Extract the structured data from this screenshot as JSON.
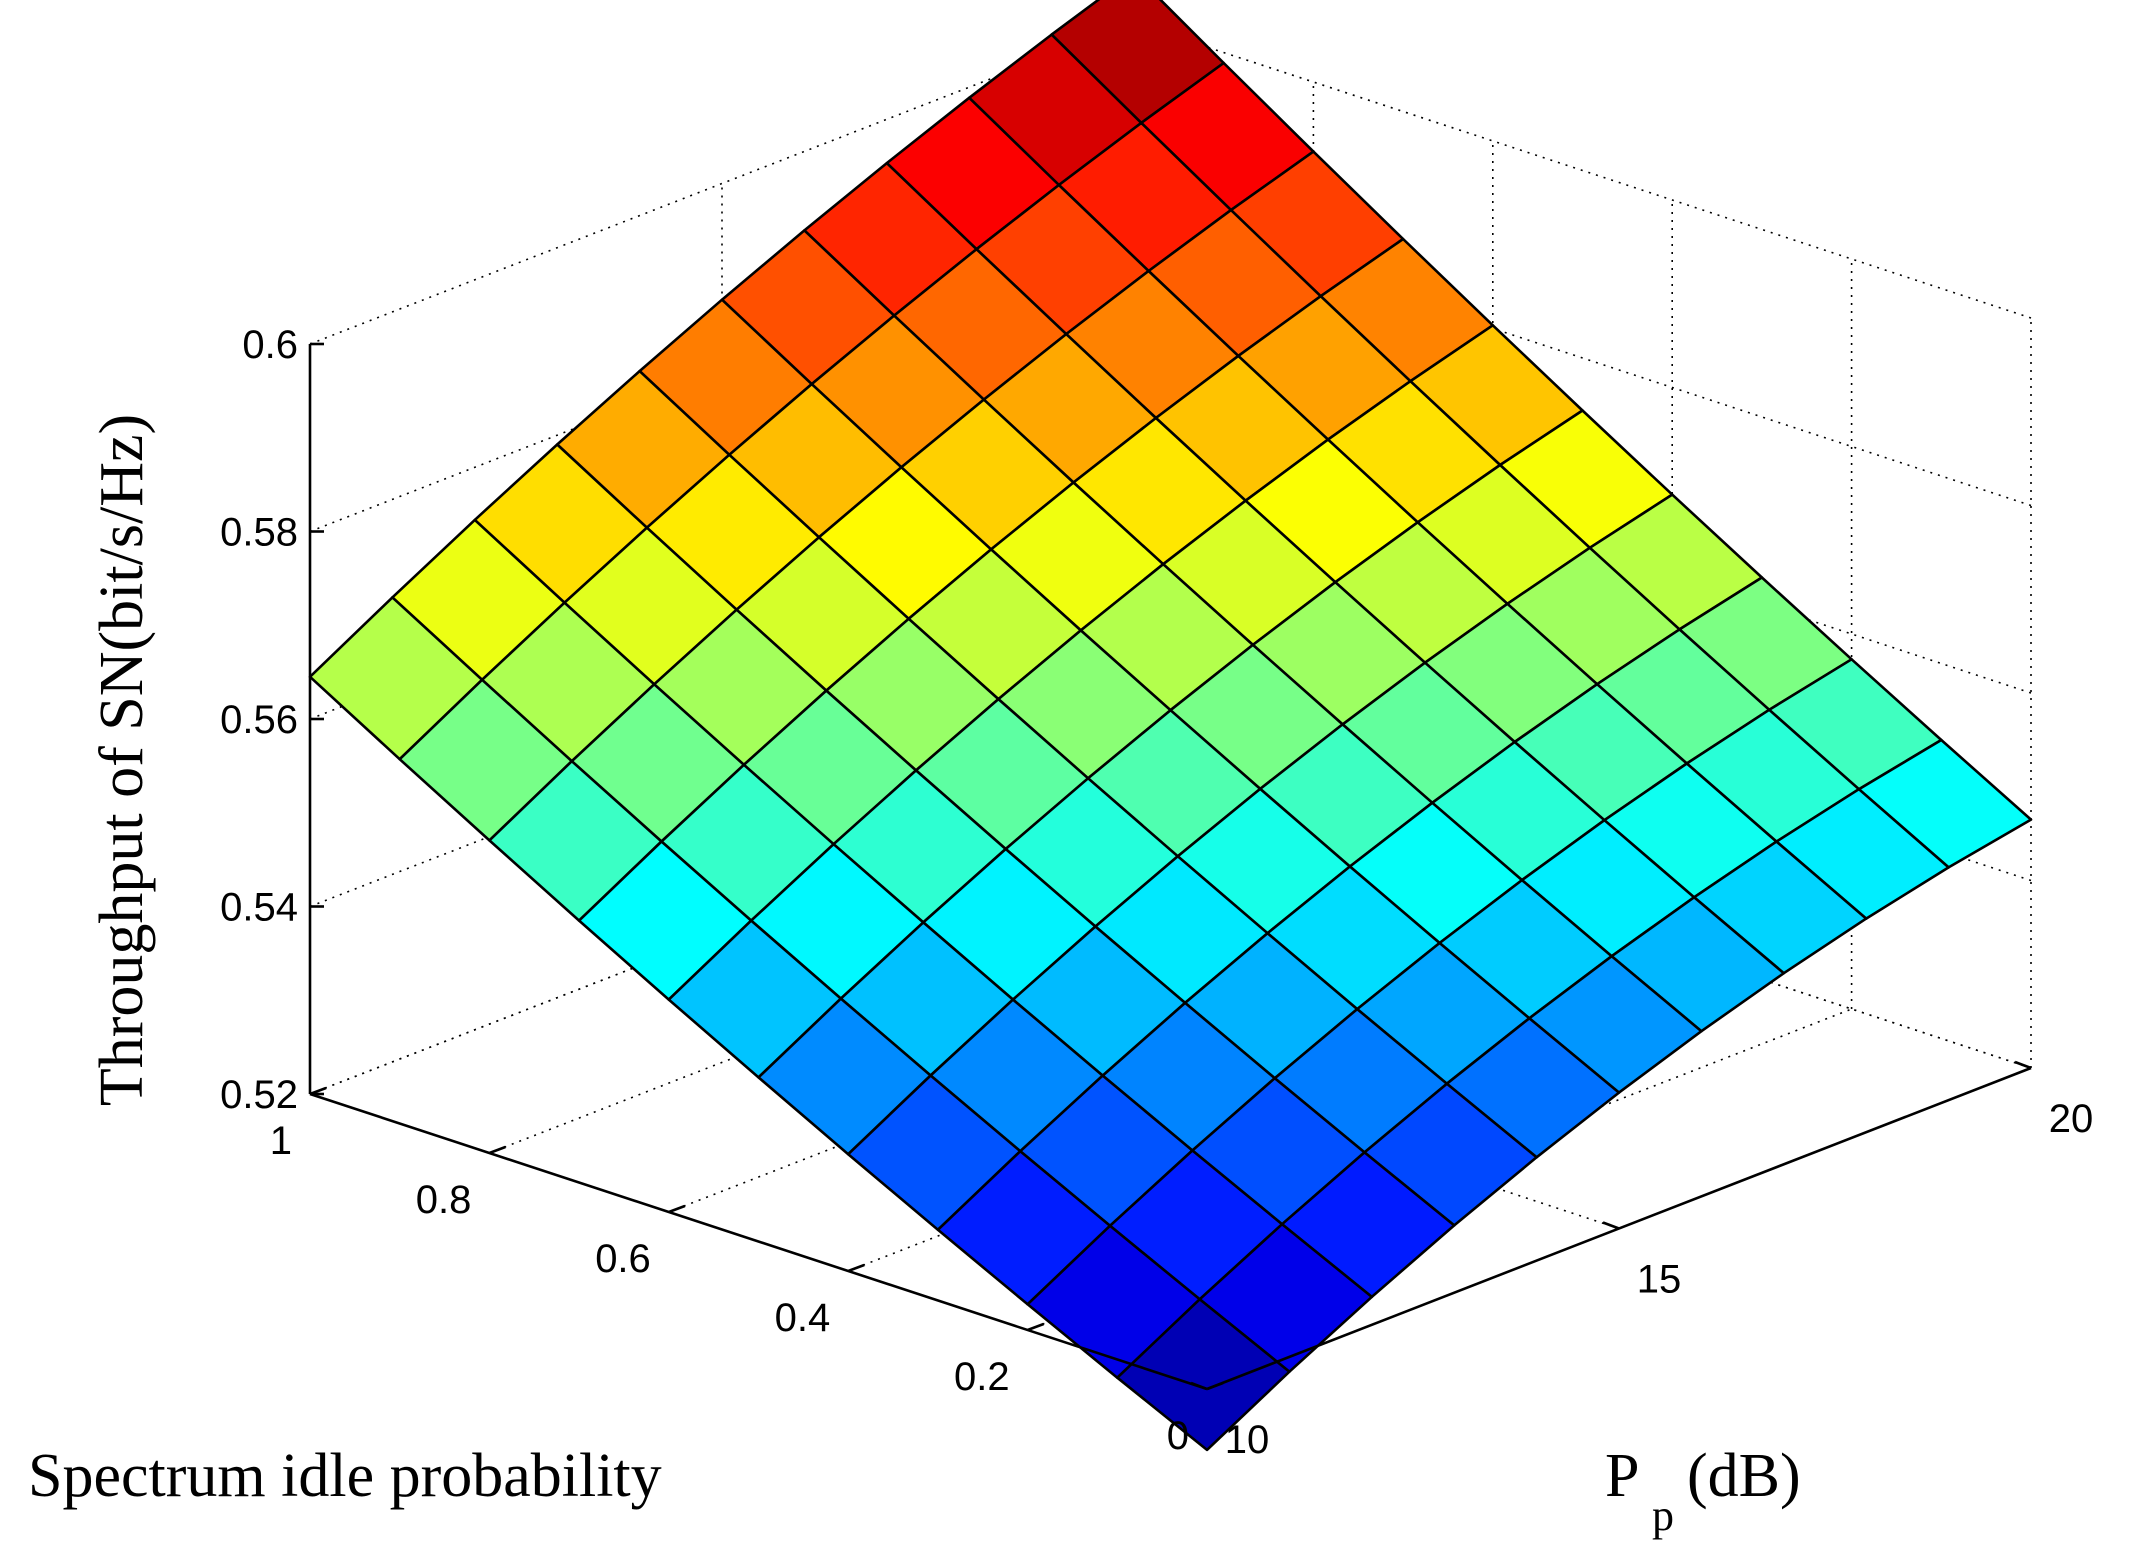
{
  "chart_data": {
    "type": "surface",
    "xlabel": "Spectrum idle probability",
    "ylabel_main": "P",
    "ylabel_sub": "p",
    "ylabel_unit": "(dB)",
    "zlabel": "Throughput of SN(bit/s/Hz)",
    "x_ticks": [
      "0",
      "0.2",
      "0.4",
      "0.6",
      "0.8",
      "1"
    ],
    "x_tick_values": [
      0,
      0.2,
      0.4,
      0.6,
      0.8,
      1
    ],
    "y_ticks": [
      "10",
      "15",
      "20"
    ],
    "y_tick_values": [
      10,
      15,
      20
    ],
    "z_ticks": [
      "0.52",
      "0.54",
      "0.56",
      "0.58",
      "0.6"
    ],
    "z_tick_values": [
      0.52,
      0.54,
      0.56,
      0.58,
      0.6
    ],
    "xlim": [
      0,
      1
    ],
    "ylim": [
      10,
      20
    ],
    "zlim": [
      0.52,
      0.6
    ],
    "grid": true,
    "colormap": "jet",
    "x": [
      0,
      0.1,
      0.2,
      0.3,
      0.4,
      0.5,
      0.6,
      0.7,
      0.8,
      0.9,
      1.0
    ],
    "y": [
      10,
      11,
      12,
      13,
      14,
      15,
      16,
      17,
      18,
      19,
      20
    ],
    "z_corners": {
      "x0_y10": 0.5135,
      "x1_y10": 0.5645,
      "x0_y20": 0.5465,
      "x1_y20": 0.6053
    }
  }
}
